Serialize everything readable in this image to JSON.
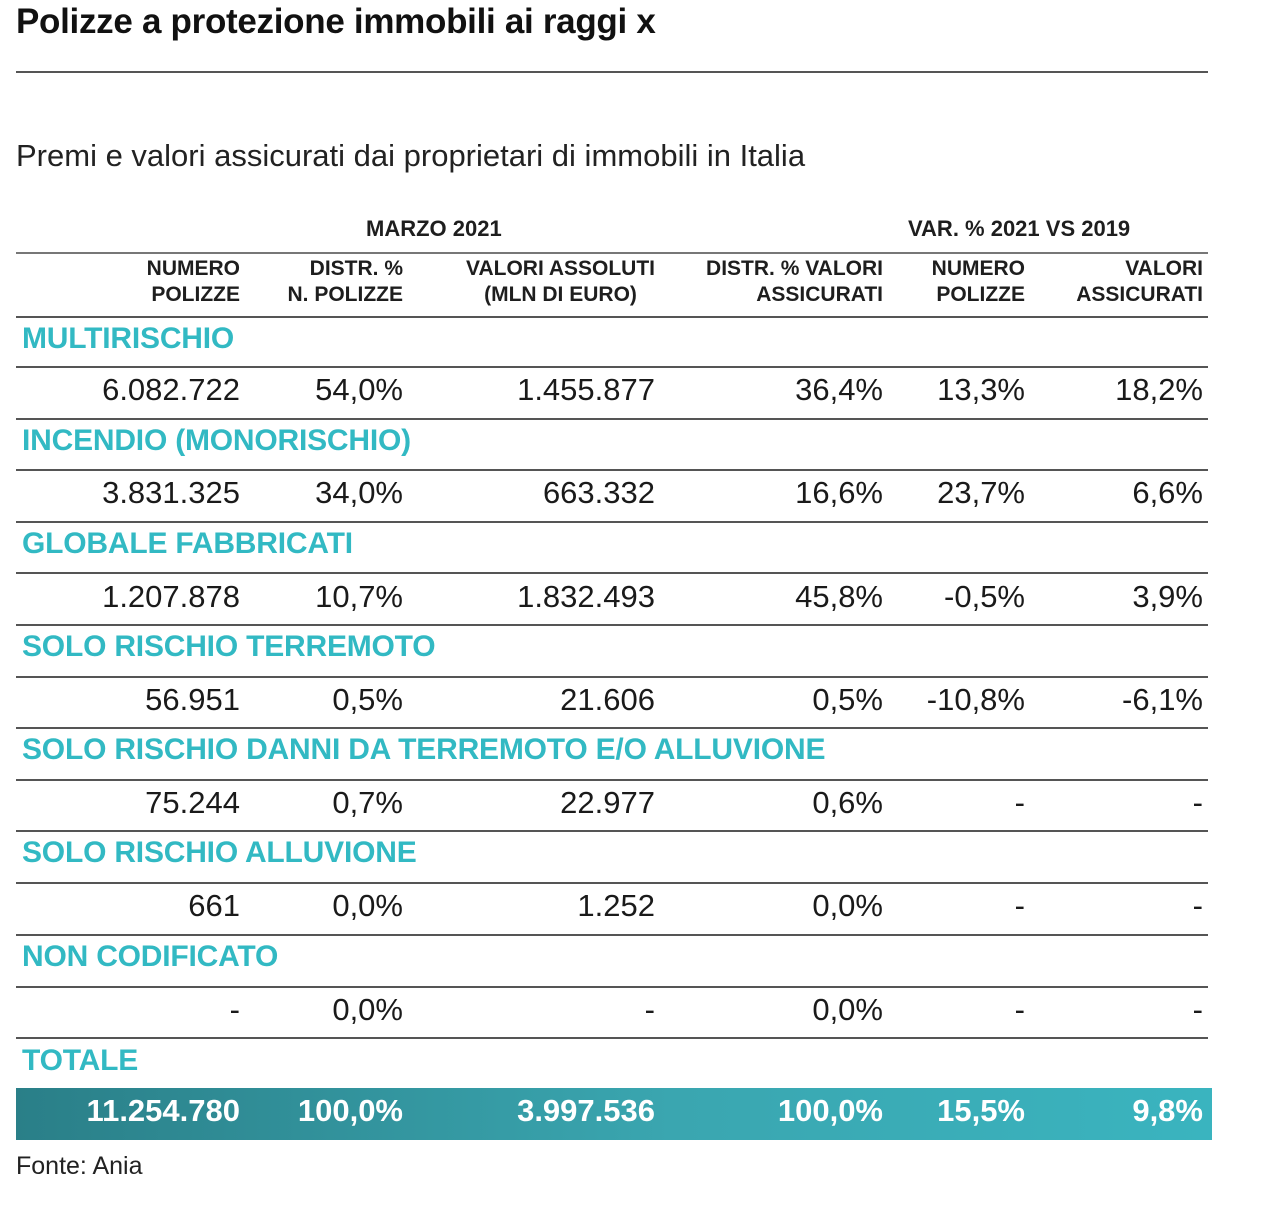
{
  "title": "Polizze a protezione immobili ai raggi x",
  "subtitle": "Premi e valori assicurati dai proprietari di immobili in Italia",
  "group_headers": {
    "march": "MARZO 2021",
    "var": "VAR. % 2021 VS 2019"
  },
  "columns": [
    {
      "line1": "NUMERO",
      "line2": "POLIZZE"
    },
    {
      "line1": "DISTR. %",
      "line2": "N. POLIZZE"
    },
    {
      "line1": "VALORI ASSOLUTI",
      "line2": "(MLN DI EURO)"
    },
    {
      "line1": "DISTR. % VALORI",
      "line2": "ASSICURATI"
    },
    {
      "line1": "NUMERO",
      "line2": "POLIZZE"
    },
    {
      "line1": "VALORI",
      "line2": "ASSICURATI"
    }
  ],
  "rows": [
    {
      "category": "MULTIRISCHIO",
      "values": [
        "6.082.722",
        "54,0%",
        "1.455.877",
        "36,4%",
        "13,3%",
        "18,2%"
      ]
    },
    {
      "category": "INCENDIO (MONORISCHIO)",
      "values": [
        "3.831.325",
        "34,0%",
        "663.332",
        "16,6%",
        "23,7%",
        "6,6%"
      ]
    },
    {
      "category": "GLOBALE FABBRICATI",
      "values": [
        "1.207.878",
        "10,7%",
        "1.832.493",
        "45,8%",
        "-0,5%",
        "3,9%"
      ]
    },
    {
      "category": "SOLO RISCHIO TERREMOTO",
      "values": [
        "56.951",
        "0,5%",
        "21.606",
        "0,5%",
        "-10,8%",
        "-6,1%"
      ]
    },
    {
      "category": "SOLO RISCHIO DANNI DA TERREMOTO E/O ALLUVIONE",
      "values": [
        "75.244",
        "0,7%",
        "22.977",
        "0,6%",
        "-",
        "-"
      ]
    },
    {
      "category": "SOLO RISCHIO ALLUVIONE",
      "values": [
        "661",
        "0,0%",
        "1.252",
        "0,0%",
        "-",
        "-"
      ]
    },
    {
      "category": "NON CODIFICATO",
      "values": [
        "-",
        "0,0%",
        "-",
        "0,0%",
        "-",
        "-"
      ]
    }
  ],
  "total": {
    "category": "TOTALE",
    "values": [
      "11.254.780",
      "100,0%",
      "3.997.536",
      "100,0%",
      "15,5%",
      "9,8%"
    ]
  },
  "source": "Fonte: Ania",
  "colors": {
    "category_text": "#32b9c3",
    "total_bar": "#3aa6b0",
    "rule": "#555555"
  }
}
